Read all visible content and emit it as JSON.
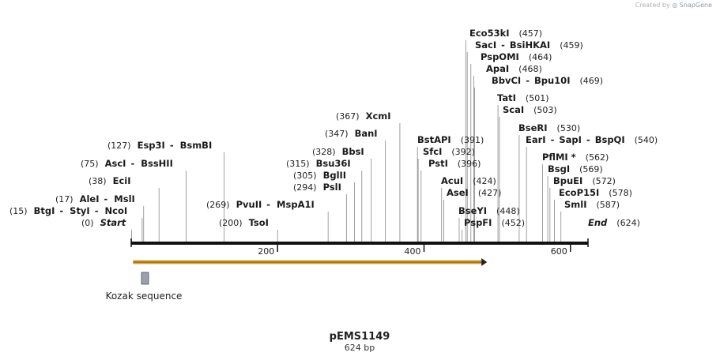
{
  "credit": {
    "prefix": "Created by",
    "brand": "SnapGene"
  },
  "plasmid": {
    "name": "pEMS1149",
    "length_label": "624 bp"
  },
  "ticks": [
    {
      "bp": 200,
      "label": "200"
    },
    {
      "bp": 400,
      "label": "400"
    },
    {
      "bp": 600,
      "label": "600"
    }
  ],
  "feature": {
    "label": "Kozak sequence",
    "color": "#9aa0b0"
  },
  "orf": {
    "start_bp": 3,
    "end_bp": 486,
    "color": "#f0b030"
  },
  "sites": [
    {
      "name": "BtgI",
      "name2": "StyI",
      "name3": "NcoI",
      "bp": 15,
      "pos": "(15)",
      "side": "left"
    },
    {
      "name": "AleI",
      "name2": "MslI",
      "bp": 17,
      "pos": "(17)",
      "side": "left"
    },
    {
      "name": "EciI",
      "bp": 38,
      "pos": "(38)",
      "side": "left"
    },
    {
      "name": "AscI",
      "name2": "BssHII",
      "bp": 75,
      "pos": "(75)",
      "side": "left"
    },
    {
      "name": "Esp3I",
      "name2": "BsmBI",
      "bp": 127,
      "pos": "(127)",
      "side": "left"
    },
    {
      "name": "TsoI",
      "bp": 200,
      "pos": "(200)",
      "side": "left"
    },
    {
      "name": "PvuII",
      "name2": "MspA1I",
      "bp": 269,
      "pos": "(269)",
      "side": "left"
    },
    {
      "name": "PslI",
      "bp": 294,
      "pos": "(294)",
      "side": "left"
    },
    {
      "name": "BglII",
      "bp": 305,
      "pos": "(305)",
      "side": "left"
    },
    {
      "name": "Bsu36I",
      "bp": 315,
      "pos": "(315)",
      "side": "left"
    },
    {
      "name": "BbsI",
      "bp": 328,
      "pos": "(328)",
      "side": "left"
    },
    {
      "name": "BanI",
      "bp": 347,
      "pos": "(347)",
      "side": "left"
    },
    {
      "name": "XcmI",
      "bp": 367,
      "pos": "(367)",
      "side": "left"
    },
    {
      "name": "BstAPI",
      "bp": 391,
      "pos": "(391)",
      "side": "right"
    },
    {
      "name": "SfcI",
      "bp": 392,
      "pos": "(392)",
      "side": "right"
    },
    {
      "name": "PstI",
      "bp": 396,
      "pos": "(396)",
      "side": "right"
    },
    {
      "name": "AcuI",
      "bp": 424,
      "pos": "(424)",
      "side": "right"
    },
    {
      "name": "AseI",
      "bp": 427,
      "pos": "(427)",
      "side": "right"
    },
    {
      "name": "BseYI",
      "bp": 448,
      "pos": "(448)",
      "side": "right"
    },
    {
      "name": "PspFI",
      "bp": 452,
      "pos": "(452)",
      "side": "right"
    },
    {
      "name": "Eco53kI",
      "bp": 457,
      "pos": "(457)",
      "side": "right"
    },
    {
      "name": "SacI",
      "name2": "BsiHKAI",
      "bp": 459,
      "pos": "(459)",
      "side": "right"
    },
    {
      "name": "PspOMI",
      "bp": 464,
      "pos": "(464)",
      "side": "right"
    },
    {
      "name": "ApaI",
      "bp": 468,
      "pos": "(468)",
      "side": "right"
    },
    {
      "name": "BbvCI",
      "name2": "Bpu10I",
      "bp": 469,
      "pos": "(469)",
      "side": "right"
    },
    {
      "name": "TatI",
      "bp": 501,
      "pos": "(501)",
      "side": "right"
    },
    {
      "name": "ScaI",
      "bp": 503,
      "pos": "(503)",
      "side": "right"
    },
    {
      "name": "BseRI",
      "bp": 530,
      "pos": "(530)",
      "side": "right"
    },
    {
      "name": "EarI",
      "name2": "SapI",
      "name3": "BspQI",
      "bp": 540,
      "pos": "(540)",
      "side": "right"
    },
    {
      "name": "PflMI *",
      "bp": 562,
      "pos": "(562)",
      "side": "right"
    },
    {
      "name": "BsgI",
      "bp": 569,
      "pos": "(569)",
      "side": "right"
    },
    {
      "name": "BpuEI",
      "bp": 572,
      "pos": "(572)",
      "side": "right"
    },
    {
      "name": "EcoP15I",
      "bp": 578,
      "pos": "(578)",
      "side": "right"
    },
    {
      "name": "SmlI",
      "bp": 587,
      "pos": "(587)",
      "side": "right"
    }
  ],
  "ends": {
    "start": {
      "name": "Start",
      "pos": "(0)"
    },
    "end": {
      "name": "End",
      "pos": "(624)"
    }
  }
}
